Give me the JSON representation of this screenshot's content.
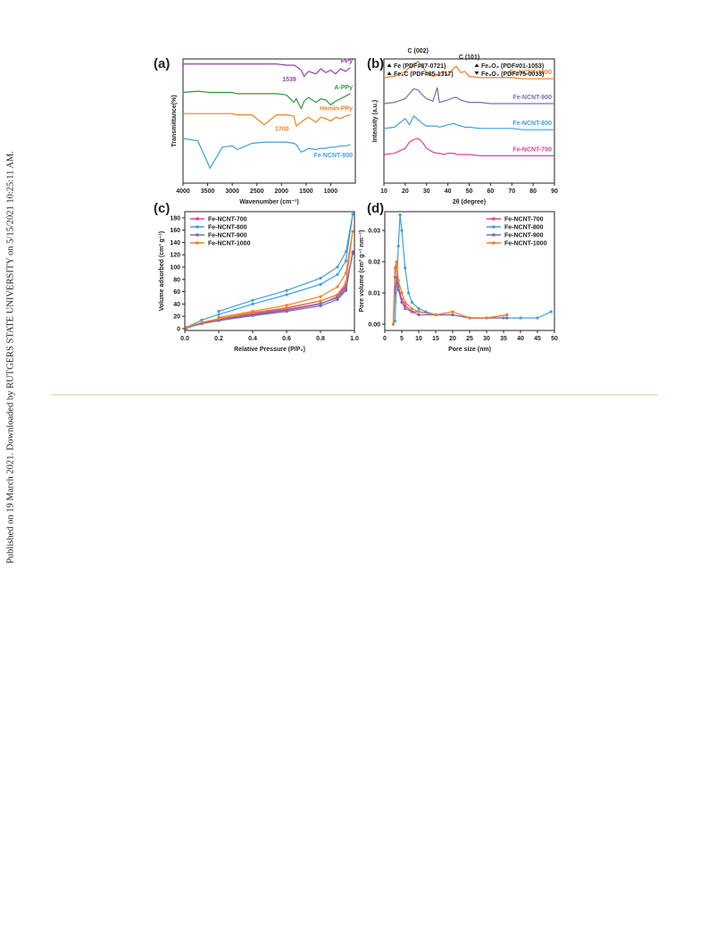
{
  "margin_note": "Published on 19 March 2021. Downloaded by RUTGERS STATE UNIVERSITY on 5/15/2021 10:25:11 AM.",
  "chart_data": [
    {
      "type": "line",
      "panel": "(a)",
      "xlabel": "Wavenumber (cm⁻¹)",
      "ylabel": "Transmittance(%)",
      "legend": "inline",
      "x": [
        4000,
        3700,
        3450,
        3200,
        3000,
        2900,
        2600,
        2350,
        2100,
        1900,
        1750,
        1700,
        1600,
        1539,
        1450,
        1300,
        1200,
        1100,
        1000,
        900,
        800,
        700,
        600
      ],
      "xlim": [
        4000,
        500
      ],
      "xticks": [
        4000,
        3500,
        3000,
        2500,
        2000,
        1500,
        1000
      ],
      "ylim": [
        0,
        10
      ],
      "annotations": [
        "1539",
        "1700"
      ],
      "series": [
        {
          "name": "PPy",
          "color": "#9b3fa6",
          "values": [
            9.6,
            9.6,
            9.6,
            9.6,
            9.6,
            9.6,
            9.6,
            9.6,
            9.6,
            9.5,
            9.5,
            9.4,
            9.1,
            8.6,
            9.0,
            8.8,
            9.2,
            8.9,
            9.1,
            8.8,
            9.2,
            9.0,
            9.3
          ]
        },
        {
          "name": "A-PPy",
          "color": "#2f9a3e",
          "values": [
            7.3,
            7.4,
            7.3,
            7.3,
            7.3,
            7.2,
            7.2,
            7.2,
            7.2,
            7.1,
            6.5,
            6.8,
            6.0,
            6.6,
            6.9,
            6.5,
            6.8,
            6.7,
            6.3,
            6.6,
            6.8,
            7.0,
            7.2
          ]
        },
        {
          "name": "Hemin-PPy",
          "color": "#f07f22",
          "values": [
            5.6,
            5.6,
            5.6,
            5.6,
            5.6,
            5.5,
            5.5,
            4.7,
            5.5,
            5.5,
            5.4,
            4.6,
            4.9,
            5.1,
            5.3,
            4.9,
            5.3,
            5.2,
            5.0,
            5.3,
            5.2,
            5.4,
            5.5
          ]
        },
        {
          "name": "Fe-NCNT-800",
          "color": "#3fa0dc",
          "values": [
            3.6,
            3.4,
            1.2,
            2.9,
            3.0,
            2.7,
            3.2,
            3.3,
            3.3,
            3.3,
            3.2,
            3.1,
            2.5,
            2.6,
            2.8,
            2.7,
            2.8,
            2.8,
            2.9,
            2.9,
            3.0,
            3.0,
            3.1
          ]
        }
      ]
    },
    {
      "type": "line",
      "panel": "(b)",
      "xlabel": "2θ (degree)",
      "ylabel": "Intensity (a.u.)",
      "legend": "inline",
      "x": [
        10,
        15,
        20,
        22,
        24,
        26,
        28,
        30,
        33,
        35,
        36,
        38,
        40,
        43,
        44,
        46,
        48,
        50,
        55,
        60,
        65,
        70,
        75,
        80,
        85,
        90
      ],
      "xlim": [
        10,
        90
      ],
      "xticks": [
        10,
        20,
        30,
        40,
        50,
        60,
        70,
        80,
        90
      ],
      "ylim": [
        0,
        10
      ],
      "phase_labels": [
        "Fe (PDF#87-0721)",
        "Fe₃C (PDF#85-1317)",
        "Fe₂O₃ (PDF#01-1053)",
        "Fe₃O₄ (PDF#75-0033)"
      ],
      "annotations": [
        "C (002)",
        "C (101)"
      ],
      "series": [
        {
          "name": "Fe-NCNT-1000",
          "color": "#f07f22",
          "values": [
            8.5,
            8.6,
            9.0,
            9.3,
            9.6,
            9.8,
            9.4,
            8.9,
            8.6,
            8.7,
            8.8,
            9.0,
            8.7,
            9.3,
            9.4,
            8.9,
            9.0,
            8.6,
            8.5,
            8.5,
            8.5,
            8.5,
            8.4,
            8.4,
            8.4,
            8.4
          ]
        },
        {
          "name": "Fe-NCNT-900",
          "color": "#7b6bb5",
          "values": [
            6.4,
            6.5,
            6.8,
            7.2,
            7.6,
            7.5,
            7.1,
            6.8,
            6.6,
            7.7,
            6.5,
            6.6,
            6.7,
            6.9,
            6.9,
            6.7,
            6.6,
            6.5,
            6.5,
            6.4,
            6.4,
            6.4,
            6.4,
            6.4,
            6.4,
            6.4
          ]
        },
        {
          "name": "Fe-NCNT-800",
          "color": "#3fa0dc",
          "values": [
            4.4,
            4.5,
            5.2,
            4.7,
            5.4,
            5.1,
            4.8,
            4.6,
            4.6,
            4.6,
            4.5,
            4.6,
            4.7,
            4.8,
            4.7,
            4.6,
            4.5,
            4.5,
            4.4,
            4.4,
            4.4,
            4.4,
            4.3,
            4.3,
            4.3,
            4.3
          ]
        },
        {
          "name": "Fe-NCNT-700",
          "color": "#e0409a",
          "values": [
            2.3,
            2.4,
            2.8,
            3.3,
            3.5,
            3.6,
            3.3,
            2.8,
            2.5,
            2.4,
            2.4,
            2.3,
            2.4,
            2.4,
            2.3,
            2.3,
            2.3,
            2.3,
            2.2,
            2.2,
            2.2,
            2.2,
            2.2,
            2.2,
            2.2,
            2.2
          ]
        }
      ]
    },
    {
      "type": "line",
      "panel": "(c)",
      "xlabel": "Relative Pressure (P/P₀)",
      "ylabel": "Volume adsorbed (cm³ g⁻¹)",
      "legend": "upper left",
      "x": [
        0.01,
        0.1,
        0.2,
        0.4,
        0.6,
        0.8,
        0.9,
        0.95,
        0.99,
        0.95,
        0.9,
        0.8,
        0.6,
        0.4,
        0.2
      ],
      "xlim": [
        0,
        1
      ],
      "xticks": [
        {
          "value": 0,
          "label": "0.0"
        },
        0.2,
        0.4,
        0.6,
        0.8,
        {
          "value": 1,
          "label": "1.0"
        }
      ],
      "ylim": [
        -3,
        190
      ],
      "yticks": [
        0,
        20,
        40,
        60,
        80,
        100,
        120,
        140,
        160,
        180
      ],
      "series": [
        {
          "name": "Fe-NCNT-700",
          "color": "#e0409a",
          "values": [
            1,
            9,
            14,
            22,
            30,
            40,
            52,
            68,
            122,
            70,
            55,
            45,
            33,
            24,
            16
          ]
        },
        {
          "name": "Fe-NCNT-800",
          "color": "#3fa0dc",
          "values": [
            2,
            14,
            23,
            40,
            55,
            72,
            88,
            110,
            186,
            125,
            100,
            82,
            62,
            46,
            28
          ]
        },
        {
          "name": "Fe-NCNT-900",
          "color": "#7b6bb5",
          "values": [
            1,
            8,
            13,
            21,
            28,
            37,
            47,
            62,
            125,
            65,
            50,
            41,
            31,
            23,
            15
          ]
        },
        {
          "name": "Fe-NCNT-1000",
          "color": "#f07f22",
          "values": [
            2,
            10,
            16,
            26,
            34,
            45,
            55,
            75,
            158,
            90,
            68,
            52,
            38,
            28,
            18
          ]
        }
      ]
    },
    {
      "type": "line",
      "panel": "(d)",
      "xlabel": "Pore size (nm)",
      "ylabel": "Pore volume (cm³ g⁻¹ nm⁻¹)",
      "legend": "upper right",
      "xlim": [
        0,
        50
      ],
      "xticks": [
        0,
        5,
        10,
        15,
        20,
        25,
        30,
        35,
        40,
        45,
        50
      ],
      "ylim": [
        -0.002,
        0.036
      ],
      "yticks": [
        {
          "value": 0,
          "label": "0.00"
        },
        0.01,
        0.02,
        0.03
      ],
      "series": [
        {
          "name": "Fe-NCNT-700",
          "color": "#e0409a",
          "x": [
            2.5,
            3,
            3.5,
            4,
            5,
            6,
            8,
            10,
            15,
            20,
            25,
            30,
            36
          ],
          "values": [
            0,
            0.015,
            0.02,
            0.012,
            0.008,
            0.006,
            0.004,
            0.004,
            0.003,
            0.003,
            0.002,
            0.002,
            0.003
          ]
        },
        {
          "name": "Fe-NCNT-800",
          "color": "#3fa0dc",
          "x": [
            3,
            4,
            4.5,
            5,
            6,
            7,
            8,
            10,
            12,
            15,
            20,
            25,
            30,
            35,
            40,
            45,
            49
          ],
          "values": [
            0.001,
            0.025,
            0.035,
            0.03,
            0.018,
            0.01,
            0.007,
            0.005,
            0.004,
            0.003,
            0.003,
            0.002,
            0.002,
            0.002,
            0.002,
            0.002,
            0.004
          ]
        },
        {
          "name": "Fe-NCNT-900",
          "color": "#7b6bb5",
          "x": [
            2.5,
            3,
            3.5,
            4,
            5,
            6,
            8,
            10,
            15,
            20,
            25,
            30,
            36
          ],
          "values": [
            0,
            0.01,
            0.015,
            0.011,
            0.007,
            0.005,
            0.004,
            0.003,
            0.003,
            0.003,
            0.002,
            0.002,
            0.002
          ]
        },
        {
          "name": "Fe-NCNT-1000",
          "color": "#f07f22",
          "x": [
            2.5,
            3,
            3.5,
            4,
            5,
            6,
            8,
            10,
            15,
            20,
            25,
            30,
            36
          ],
          "values": [
            0,
            0.018,
            0.02,
            0.014,
            0.01,
            0.007,
            0.005,
            0.004,
            0.003,
            0.004,
            0.002,
            0.002,
            0.003
          ]
        }
      ]
    }
  ]
}
